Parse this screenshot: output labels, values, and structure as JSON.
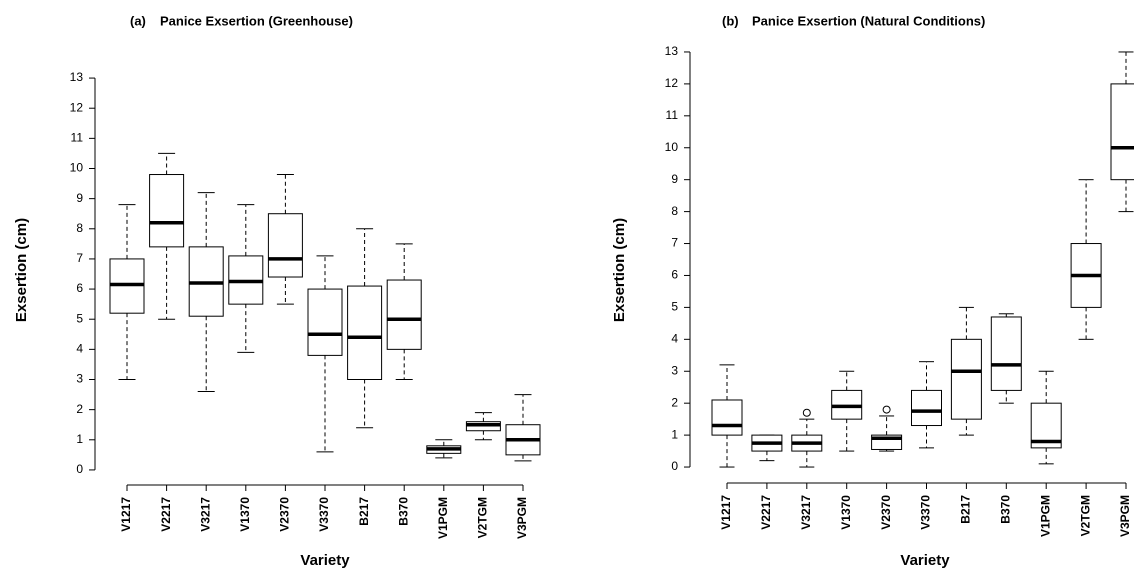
{
  "chart_data": [
    {
      "type": "box",
      "panel_label": "(a)",
      "title": "Panice Exsertion (Greenhouse)",
      "x_label": "Variety",
      "y_label": "Exsertion (cm)",
      "categories": [
        "V1217",
        "V2217",
        "V3217",
        "V1370",
        "V2370",
        "V3370",
        "B217",
        "B370",
        "V1PGM",
        "V2TGM",
        "V3PGM"
      ],
      "boxes": [
        {
          "whislo": 3.0,
          "q1": 5.2,
          "med": 6.15,
          "q3": 7.0,
          "whishi": 8.8
        },
        {
          "whislo": 5.0,
          "q1": 7.4,
          "med": 8.2,
          "q3": 9.8,
          "whishi": 10.5
        },
        {
          "whislo": 2.6,
          "q1": 5.1,
          "med": 6.2,
          "q3": 7.4,
          "whishi": 9.2
        },
        {
          "whislo": 3.9,
          "q1": 5.5,
          "med": 6.25,
          "q3": 7.1,
          "whishi": 8.8
        },
        {
          "whislo": 5.5,
          "q1": 6.4,
          "med": 7.0,
          "q3": 8.5,
          "whishi": 9.8
        },
        {
          "whislo": 0.6,
          "q1": 3.8,
          "med": 4.5,
          "q3": 6.0,
          "whishi": 7.1
        },
        {
          "whislo": 1.4,
          "q1": 3.0,
          "med": 4.4,
          "q3": 6.1,
          "whishi": 8.0
        },
        {
          "whislo": 3.0,
          "q1": 4.0,
          "med": 5.0,
          "q3": 6.3,
          "whishi": 7.5
        },
        {
          "whislo": 0.4,
          "q1": 0.55,
          "med": 0.7,
          "q3": 0.8,
          "whishi": 1.0
        },
        {
          "whislo": 1.0,
          "q1": 1.3,
          "med": 1.5,
          "q3": 1.6,
          "whishi": 1.9
        },
        {
          "whislo": 0.3,
          "q1": 0.5,
          "med": 1.0,
          "q3": 1.5,
          "whishi": 2.5
        }
      ],
      "ylim": [
        -0.5,
        13.5
      ],
      "yticks": [
        0,
        1,
        2,
        3,
        4,
        5,
        6,
        7,
        8,
        9,
        10,
        11,
        12,
        13
      ],
      "color": "#000000"
    },
    {
      "type": "box",
      "panel_label": "(b)",
      "title": "Panice Exsertion (Natural Conditions)",
      "x_label": "Variety",
      "y_label": "Exsertion (cm)",
      "categories": [
        "V1217",
        "V2217",
        "V3217",
        "V1370",
        "V2370",
        "V3370",
        "B217",
        "B370",
        "V1PGM",
        "V2TGM",
        "V3PGM"
      ],
      "boxes": [
        {
          "whislo": 0.0,
          "q1": 1.0,
          "med": 1.3,
          "q3": 2.1,
          "whishi": 3.2
        },
        {
          "whislo": 0.2,
          "q1": 0.5,
          "med": 0.75,
          "q3": 1.0,
          "whishi": 1.0
        },
        {
          "whislo": 0.0,
          "q1": 0.5,
          "med": 0.75,
          "q3": 1.0,
          "whishi": 1.5,
          "fliers": [
            1.7
          ]
        },
        {
          "whislo": 0.5,
          "q1": 1.5,
          "med": 1.9,
          "q3": 2.4,
          "whishi": 3.0
        },
        {
          "whislo": 0.5,
          "q1": 0.55,
          "med": 0.9,
          "q3": 1.0,
          "whishi": 1.6,
          "fliers": [
            1.8
          ]
        },
        {
          "whislo": 0.6,
          "q1": 1.3,
          "med": 1.75,
          "q3": 2.4,
          "whishi": 3.3
        },
        {
          "whislo": 1.0,
          "q1": 1.5,
          "med": 3.0,
          "q3": 4.0,
          "whishi": 5.0
        },
        {
          "whislo": 2.0,
          "q1": 2.4,
          "med": 3.2,
          "q3": 4.7,
          "whishi": 4.8
        },
        {
          "whislo": 0.1,
          "q1": 0.6,
          "med": 0.8,
          "q3": 2.0,
          "whishi": 3.0
        },
        {
          "whislo": 4.0,
          "q1": 5.0,
          "med": 6.0,
          "q3": 7.0,
          "whishi": 9.0
        },
        {
          "whislo": 8.0,
          "q1": 9.0,
          "med": 10.0,
          "q3": 12.0,
          "whishi": 13.0
        }
      ],
      "ylim": [
        -0.5,
        13.5
      ],
      "yticks": [
        0,
        1,
        2,
        3,
        4,
        5,
        6,
        7,
        8,
        9,
        10,
        11,
        12,
        13
      ],
      "color": "#000000"
    }
  ]
}
